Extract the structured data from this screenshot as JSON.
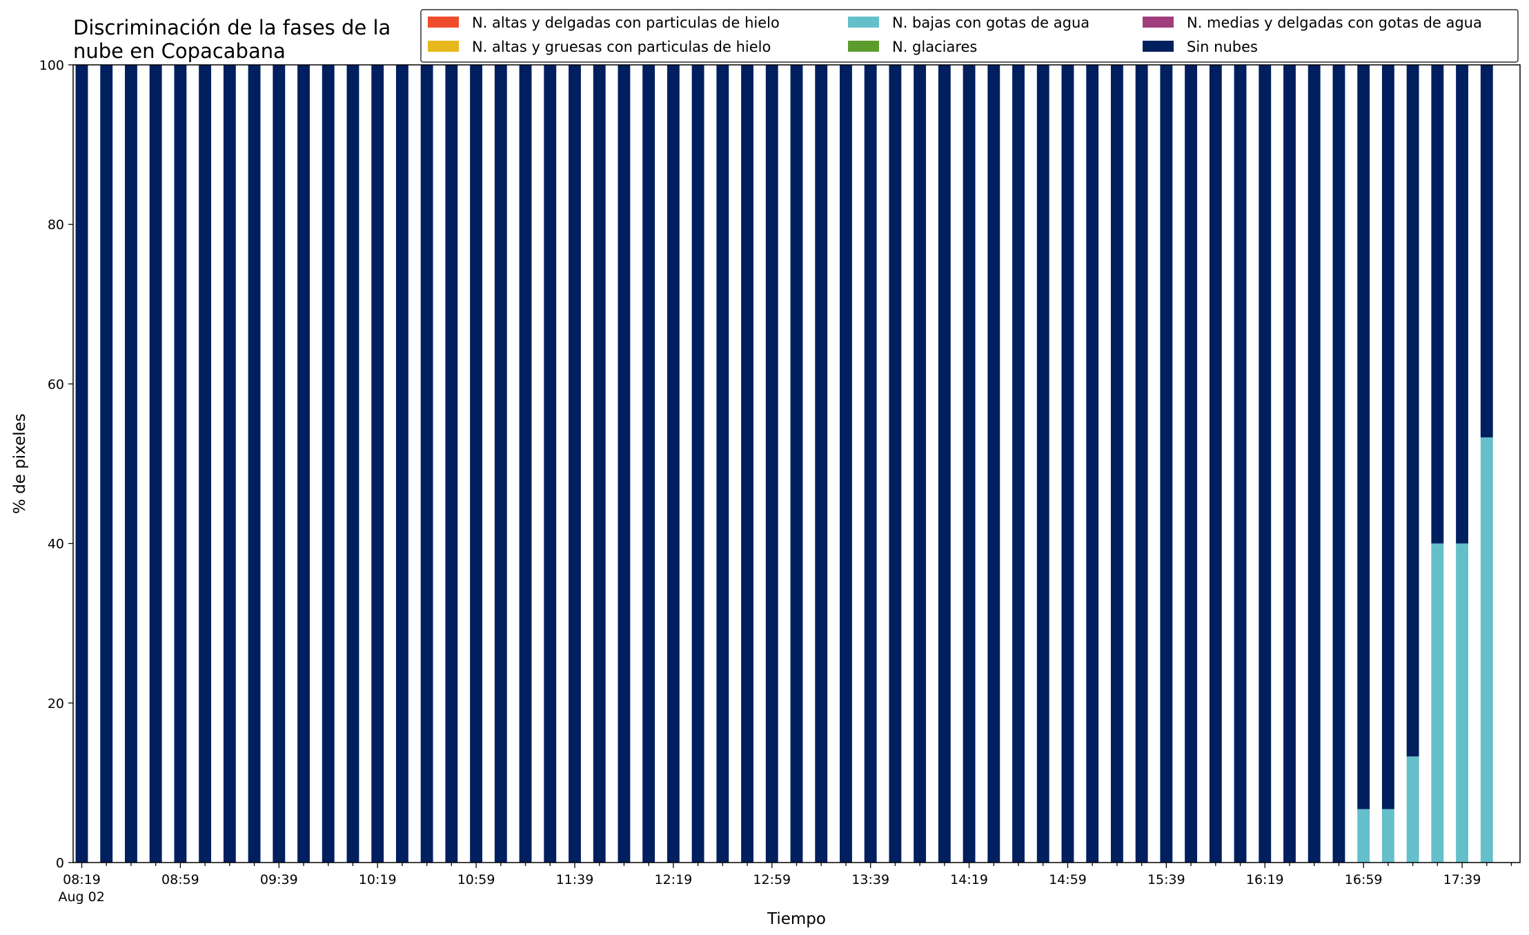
{
  "chart_data": {
    "type": "bar",
    "stacked": true,
    "title": "Discriminación de la fases de la\nnube en Copacabana",
    "xlabel": "Tiempo",
    "ylabel": "% de pixeles",
    "ylim": [
      0,
      100
    ],
    "yticks": [
      "0",
      "20",
      "40",
      "60",
      "80",
      "100"
    ],
    "x_start": "08:19",
    "x_step_minutes": 10,
    "x_count": 58,
    "x_tick_labels": [
      "08:19",
      "08:59",
      "09:39",
      "10:19",
      "10:59",
      "11:39",
      "12:19",
      "12:59",
      "13:39",
      "14:19",
      "14:59",
      "15:39",
      "16:19",
      "16:59",
      "17:39"
    ],
    "x_date_label": "Aug 02",
    "grid": false,
    "legend_position": "top-right",
    "series": [
      {
        "name": "N. altas y delgadas con particulas de hielo",
        "color": "#ee4c2c",
        "nonzero": {}
      },
      {
        "name": "N. altas y gruesas con particulas de hielo",
        "color": "#e6b81c",
        "nonzero": {}
      },
      {
        "name": "N. bajas con gotas de agua",
        "color": "#64bfca",
        "nonzero": {
          "52": 6.7,
          "53": 6.7,
          "54": 13.3,
          "55": 40,
          "56": 40,
          "57": 53.3
        }
      },
      {
        "name": "N. glaciares",
        "color": "#5b9c2c",
        "nonzero": {}
      },
      {
        "name": "N. medias y delgadas con gotas de agua",
        "color": "#a03d7c",
        "nonzero": {}
      },
      {
        "name": "Sin nubes",
        "color": "#001f5f",
        "default": 100,
        "nonzero": {
          "52": 93.3,
          "53": 93.3,
          "54": 86.7,
          "55": 60,
          "56": 60,
          "57": 46.7
        }
      }
    ]
  }
}
